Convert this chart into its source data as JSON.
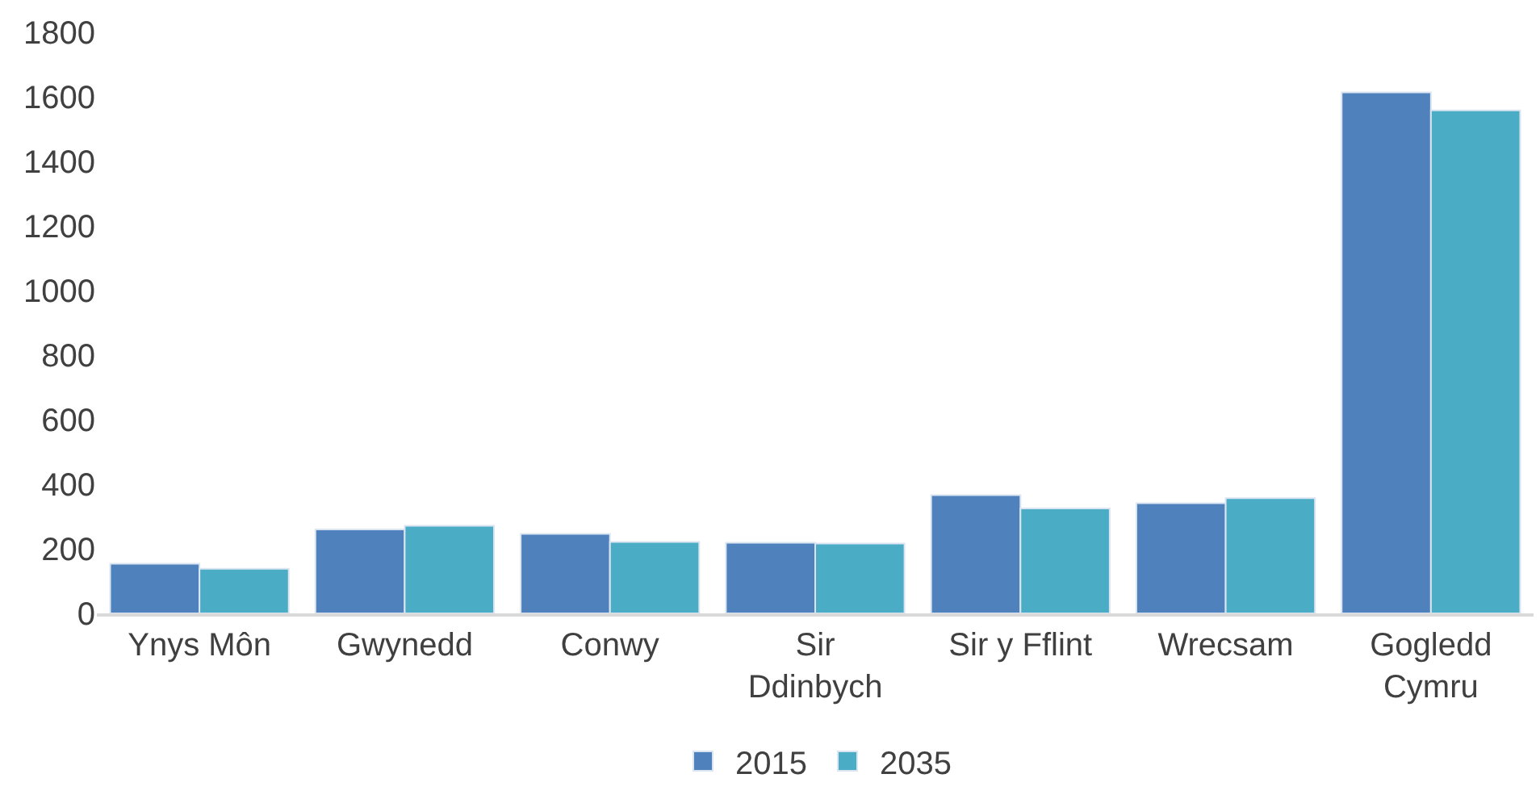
{
  "chart_data": {
    "type": "bar",
    "categories": [
      "Ynys Môn",
      "Gwynedd",
      "Conwy",
      "Sir\nDdinbych",
      "Sir y Fflint",
      "Wrecsam",
      "Gogledd\nCymru"
    ],
    "series": [
      {
        "name": "2015",
        "color": "#4f81bd",
        "values": [
          154,
          260,
          246,
          219,
          366,
          341,
          1614
        ]
      },
      {
        "name": "2035",
        "color": "#4bacc6",
        "values": [
          138,
          271,
          221,
          216,
          325,
          357,
          1558
        ]
      }
    ],
    "ylim": [
      0,
      1800
    ],
    "yticks": [
      0,
      200,
      400,
      600,
      800,
      1000,
      1200,
      1400,
      1600,
      1800
    ],
    "legend": "bottom"
  }
}
